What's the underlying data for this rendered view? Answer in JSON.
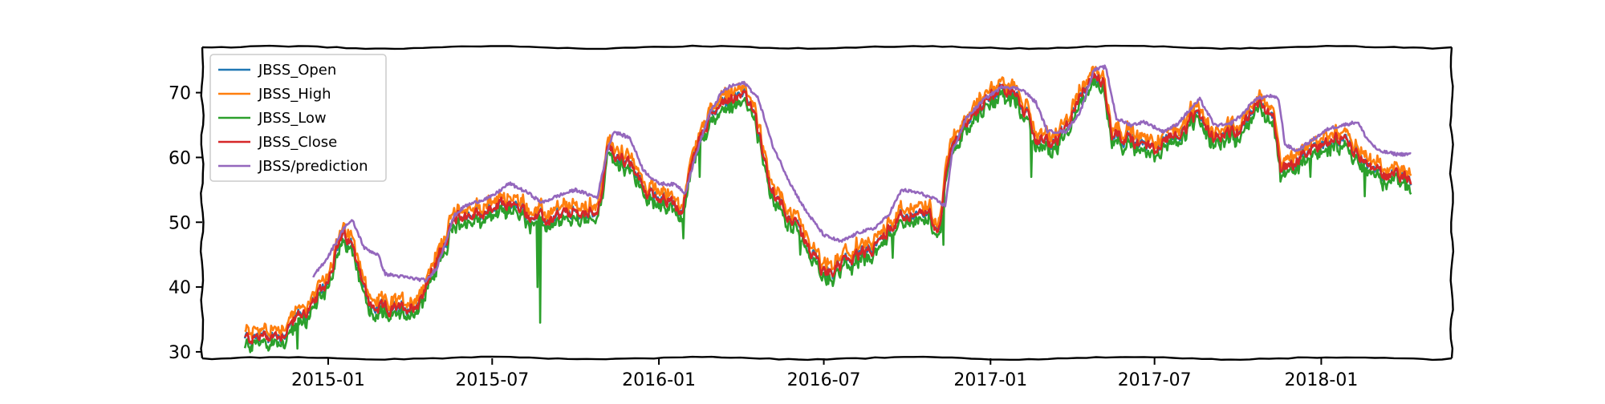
{
  "chart_data": {
    "type": "line",
    "title": "",
    "xlabel": "",
    "ylabel": "",
    "style": "xkcd-sketch",
    "x_date_range": [
      "2014-10-01",
      "2018-04-10"
    ],
    "xlim": [
      "2014-08-15",
      "2018-05-25"
    ],
    "ylim": [
      29,
      77
    ],
    "x_tick_labels": [
      "2015-01",
      "2015-07",
      "2016-01",
      "2016-07",
      "2017-01",
      "2017-07",
      "2018-01"
    ],
    "x_tick_dates": [
      "2015-01-01",
      "2015-07-01",
      "2016-01-01",
      "2016-07-01",
      "2017-01-01",
      "2017-07-01",
      "2018-01-01"
    ],
    "y_ticks": [
      30,
      40,
      50,
      60,
      70
    ],
    "y_tick_labels": [
      "30",
      "40",
      "50",
      "60",
      "70"
    ],
    "legend_position": "upper-left",
    "close_path": [
      [
        "2014-10-01",
        32.0
      ],
      [
        "2014-10-20",
        32.4
      ],
      [
        "2014-11-10",
        32.6
      ],
      [
        "2014-11-25",
        35.0
      ],
      [
        "2014-12-15",
        37.0
      ],
      [
        "2014-12-31",
        41.0
      ],
      [
        "2015-01-15",
        47.5
      ],
      [
        "2015-01-25",
        47.0
      ],
      [
        "2015-02-05",
        43.0
      ],
      [
        "2015-02-15",
        37.0
      ],
      [
        "2015-03-01",
        36.5
      ],
      [
        "2015-03-20",
        36.5
      ],
      [
        "2015-04-10",
        37.5
      ],
      [
        "2015-04-25",
        42.0
      ],
      [
        "2015-05-15",
        49.0
      ],
      [
        "2015-05-25",
        51.0
      ],
      [
        "2015-06-10",
        51.0
      ],
      [
        "2015-07-01",
        52.0
      ],
      [
        "2015-07-20",
        53.0
      ],
      [
        "2015-08-05",
        51.5
      ],
      [
        "2015-08-20",
        50.5
      ],
      [
        "2015-09-01",
        50.0
      ],
      [
        "2015-09-15",
        51.0
      ],
      [
        "2015-10-01",
        51.5
      ],
      [
        "2015-10-15",
        51.0
      ],
      [
        "2015-10-28",
        53.0
      ],
      [
        "2015-11-05",
        61.0
      ],
      [
        "2015-11-20",
        60.0
      ],
      [
        "2015-12-05",
        58.0
      ],
      [
        "2015-12-15",
        55.0
      ],
      [
        "2015-12-31",
        54.0
      ],
      [
        "2016-01-15",
        53.5
      ],
      [
        "2016-01-25",
        51.0
      ],
      [
        "2016-02-05",
        58.0
      ],
      [
        "2016-02-15",
        63.0
      ],
      [
        "2016-03-01",
        67.0
      ],
      [
        "2016-03-15",
        69.0
      ],
      [
        "2016-04-01",
        70.0
      ],
      [
        "2016-04-15",
        67.0
      ],
      [
        "2016-05-01",
        56.0
      ],
      [
        "2016-05-20",
        52.0
      ],
      [
        "2016-06-10",
        47.0
      ],
      [
        "2016-07-01",
        42.0
      ],
      [
        "2016-07-20",
        43.5
      ],
      [
        "2016-08-10",
        45.0
      ],
      [
        "2016-08-25",
        46.0
      ],
      [
        "2016-09-05",
        48.0
      ],
      [
        "2016-09-20",
        50.5
      ],
      [
        "2016-10-10",
        51.5
      ],
      [
        "2016-10-25",
        51.0
      ],
      [
        "2016-11-05",
        49.0
      ],
      [
        "2016-11-15",
        60.0
      ],
      [
        "2016-12-01",
        65.0
      ],
      [
        "2016-12-15",
        67.0
      ],
      [
        "2017-01-01",
        70.0
      ],
      [
        "2017-01-20",
        70.5
      ],
      [
        "2017-02-05",
        68.0
      ],
      [
        "2017-02-20",
        63.0
      ],
      [
        "2017-03-10",
        62.0
      ],
      [
        "2017-03-25",
        64.0
      ],
      [
        "2017-04-10",
        70.0
      ],
      [
        "2017-04-25",
        72.5
      ],
      [
        "2017-05-05",
        72.0
      ],
      [
        "2017-05-15",
        64.0
      ],
      [
        "2017-06-01",
        63.0
      ],
      [
        "2017-06-15",
        62.0
      ],
      [
        "2017-07-01",
        61.5
      ],
      [
        "2017-07-15",
        63.0
      ],
      [
        "2017-08-01",
        64.0
      ],
      [
        "2017-08-15",
        66.5
      ],
      [
        "2017-09-01",
        63.0
      ],
      [
        "2017-09-15",
        64.0
      ],
      [
        "2017-10-01",
        64.0
      ],
      [
        "2017-10-15",
        67.0
      ],
      [
        "2017-10-25",
        68.0
      ],
      [
        "2017-11-10",
        66.5
      ],
      [
        "2017-11-17",
        58.0
      ],
      [
        "2017-12-01",
        59.0
      ],
      [
        "2017-12-15",
        61.0
      ],
      [
        "2018-01-01",
        62.0
      ],
      [
        "2018-01-15",
        63.0
      ],
      [
        "2018-02-01",
        62.0
      ],
      [
        "2018-02-10",
        60.0
      ],
      [
        "2018-02-20",
        59.0
      ],
      [
        "2018-03-01",
        58.0
      ],
      [
        "2018-03-15",
        57.0
      ],
      [
        "2018-03-25",
        57.5
      ],
      [
        "2018-04-10",
        57.0
      ]
    ],
    "prediction_path": [
      [
        "2014-12-15",
        41.5
      ],
      [
        "2014-12-31",
        44.5
      ],
      [
        "2015-01-10",
        47.0
      ],
      [
        "2015-01-20",
        49.5
      ],
      [
        "2015-01-28",
        50.2
      ],
      [
        "2015-02-10",
        46.0
      ],
      [
        "2015-02-25",
        45.0
      ],
      [
        "2015-03-05",
        42.0
      ],
      [
        "2015-04-20",
        41.0
      ],
      [
        "2015-05-01",
        43.0
      ],
      [
        "2015-05-20",
        51.0
      ],
      [
        "2015-06-01",
        52.5
      ],
      [
        "2015-07-01",
        54.0
      ],
      [
        "2015-07-20",
        56.0
      ],
      [
        "2015-08-10",
        54.5
      ],
      [
        "2015-08-25",
        53.0
      ],
      [
        "2015-09-10",
        54.0
      ],
      [
        "2015-10-01",
        55.0
      ],
      [
        "2015-10-25",
        53.8
      ],
      [
        "2015-11-05",
        61.0
      ],
      [
        "2015-11-12",
        64.0
      ],
      [
        "2015-11-30",
        63.0
      ],
      [
        "2015-12-15",
        58.0
      ],
      [
        "2015-12-31",
        56.0
      ],
      [
        "2016-01-20",
        55.8
      ],
      [
        "2016-01-30",
        54.5
      ],
      [
        "2016-02-10",
        60.0
      ],
      [
        "2016-02-25",
        66.5
      ],
      [
        "2016-03-10",
        70.0
      ],
      [
        "2016-03-20",
        71.0
      ],
      [
        "2016-04-05",
        71.5
      ],
      [
        "2016-04-20",
        69.0
      ],
      [
        "2016-05-05",
        62.0
      ],
      [
        "2016-05-25",
        56.0
      ],
      [
        "2016-06-10",
        52.0
      ],
      [
        "2016-07-01",
        48.0
      ],
      [
        "2016-07-20",
        47.0
      ],
      [
        "2016-08-10",
        48.5
      ],
      [
        "2016-08-25",
        49.0
      ],
      [
        "2016-09-10",
        51.0
      ],
      [
        "2016-09-25",
        55.0
      ],
      [
        "2016-10-15",
        54.5
      ],
      [
        "2016-11-01",
        53.5
      ],
      [
        "2016-11-12",
        52.5
      ],
      [
        "2016-11-20",
        61.0
      ],
      [
        "2016-12-05",
        66.0
      ],
      [
        "2016-12-25",
        69.0
      ],
      [
        "2017-01-15",
        71.0
      ],
      [
        "2017-02-05",
        70.5
      ],
      [
        "2017-02-20",
        68.5
      ],
      [
        "2017-03-05",
        64.0
      ],
      [
        "2017-03-25",
        64.0
      ],
      [
        "2017-04-10",
        67.0
      ],
      [
        "2017-04-25",
        73.5
      ],
      [
        "2017-05-08",
        74.0
      ],
      [
        "2017-05-20",
        66.0
      ],
      [
        "2017-06-05",
        65.0
      ],
      [
        "2017-06-20",
        65.5
      ],
      [
        "2017-07-10",
        64.0
      ],
      [
        "2017-07-25",
        65.0
      ],
      [
        "2017-08-10",
        67.5
      ],
      [
        "2017-08-20",
        69.0
      ],
      [
        "2017-09-05",
        65.0
      ],
      [
        "2017-09-20",
        65.0
      ],
      [
        "2017-10-05",
        66.5
      ],
      [
        "2017-10-20",
        69.0
      ],
      [
        "2017-11-05",
        69.5
      ],
      [
        "2017-11-15",
        69.0
      ],
      [
        "2017-11-22",
        62.0
      ],
      [
        "2017-12-05",
        61.0
      ],
      [
        "2017-12-20",
        62.5
      ],
      [
        "2018-01-10",
        64.5
      ],
      [
        "2018-01-25",
        65.0
      ],
      [
        "2018-02-10",
        65.5
      ],
      [
        "2018-02-20",
        63.0
      ],
      [
        "2018-03-05",
        61.0
      ],
      [
        "2018-03-25",
        60.5
      ],
      [
        "2018-04-10",
        60.5
      ]
    ],
    "low_spikes": [
      [
        "2014-11-28",
        30.5
      ],
      [
        "2015-02-20",
        35.0
      ],
      [
        "2015-08-23",
        34.5
      ],
      [
        "2015-08-20",
        40.0
      ],
      [
        "2016-01-28",
        47.5
      ],
      [
        "2016-02-15",
        57.0
      ],
      [
        "2016-06-05",
        45.0
      ],
      [
        "2016-09-15",
        44.5
      ],
      [
        "2016-11-10",
        46.5
      ],
      [
        "2017-02-15",
        57.0
      ],
      [
        "2017-12-20",
        57.0
      ],
      [
        "2018-02-18",
        54.0
      ]
    ],
    "series": [
      {
        "name": "JBSS_Open",
        "color": "#1f77b4",
        "derivation": "Close with small daily offset (mostly hidden beneath other series)"
      },
      {
        "name": "JBSS_High",
        "color": "#ff7f0e",
        "derivation": "Close plus roughly 0.6 to 1.5"
      },
      {
        "name": "JBSS_Low",
        "color": "#2ca02c",
        "derivation": "Close minus roughly 0.6 to 1.5, with occasional downward spikes"
      },
      {
        "name": "JBSS_Close",
        "color": "#d62728",
        "derivation": "close_path with daily noise"
      },
      {
        "name": "JBSS/prediction",
        "color": "#9467bd",
        "derivation": "prediction_path (smoothed)"
      }
    ]
  }
}
